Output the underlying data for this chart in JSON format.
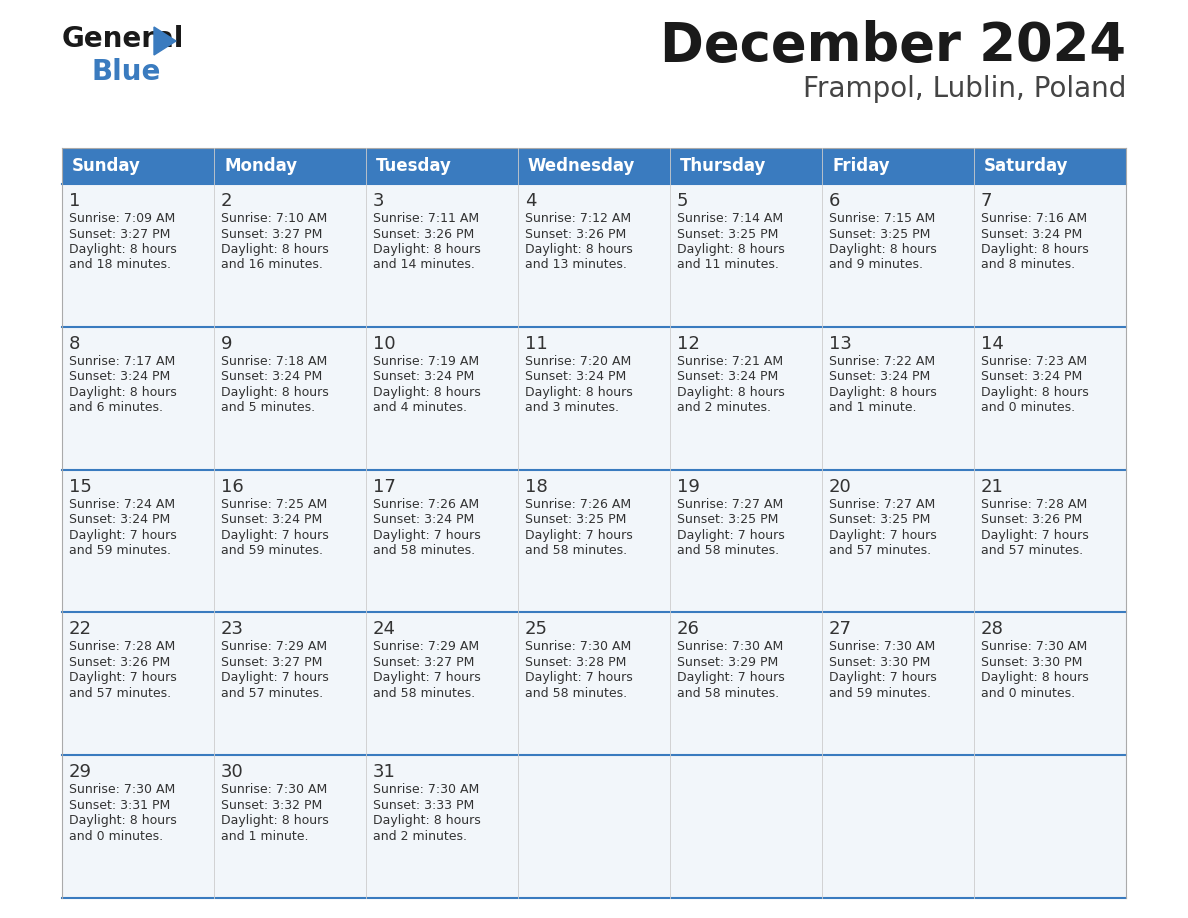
{
  "title": "December 2024",
  "subtitle": "Frampol, Lublin, Poland",
  "header_color": "#3a7bbf",
  "header_text_color": "#ffffff",
  "cell_bg": "#f2f6fa",
  "day_headers": [
    "Sunday",
    "Monday",
    "Tuesday",
    "Wednesday",
    "Thursday",
    "Friday",
    "Saturday"
  ],
  "title_color": "#1a1a1a",
  "subtitle_color": "#444444",
  "text_color": "#333333",
  "days": [
    {
      "day": 1,
      "col": 0,
      "row": 0,
      "sunrise": "7:09 AM",
      "sunset": "3:27 PM",
      "daylight_hours": 8,
      "daylight_minutes": 18
    },
    {
      "day": 2,
      "col": 1,
      "row": 0,
      "sunrise": "7:10 AM",
      "sunset": "3:27 PM",
      "daylight_hours": 8,
      "daylight_minutes": 16
    },
    {
      "day": 3,
      "col": 2,
      "row": 0,
      "sunrise": "7:11 AM",
      "sunset": "3:26 PM",
      "daylight_hours": 8,
      "daylight_minutes": 14
    },
    {
      "day": 4,
      "col": 3,
      "row": 0,
      "sunrise": "7:12 AM",
      "sunset": "3:26 PM",
      "daylight_hours": 8,
      "daylight_minutes": 13
    },
    {
      "day": 5,
      "col": 4,
      "row": 0,
      "sunrise": "7:14 AM",
      "sunset": "3:25 PM",
      "daylight_hours": 8,
      "daylight_minutes": 11
    },
    {
      "day": 6,
      "col": 5,
      "row": 0,
      "sunrise": "7:15 AM",
      "sunset": "3:25 PM",
      "daylight_hours": 8,
      "daylight_minutes": 9
    },
    {
      "day": 7,
      "col": 6,
      "row": 0,
      "sunrise": "7:16 AM",
      "sunset": "3:24 PM",
      "daylight_hours": 8,
      "daylight_minutes": 8
    },
    {
      "day": 8,
      "col": 0,
      "row": 1,
      "sunrise": "7:17 AM",
      "sunset": "3:24 PM",
      "daylight_hours": 8,
      "daylight_minutes": 6
    },
    {
      "day": 9,
      "col": 1,
      "row": 1,
      "sunrise": "7:18 AM",
      "sunset": "3:24 PM",
      "daylight_hours": 8,
      "daylight_minutes": 5
    },
    {
      "day": 10,
      "col": 2,
      "row": 1,
      "sunrise": "7:19 AM",
      "sunset": "3:24 PM",
      "daylight_hours": 8,
      "daylight_minutes": 4
    },
    {
      "day": 11,
      "col": 3,
      "row": 1,
      "sunrise": "7:20 AM",
      "sunset": "3:24 PM",
      "daylight_hours": 8,
      "daylight_minutes": 3
    },
    {
      "day": 12,
      "col": 4,
      "row": 1,
      "sunrise": "7:21 AM",
      "sunset": "3:24 PM",
      "daylight_hours": 8,
      "daylight_minutes": 2
    },
    {
      "day": 13,
      "col": 5,
      "row": 1,
      "sunrise": "7:22 AM",
      "sunset": "3:24 PM",
      "daylight_hours": 8,
      "daylight_minutes": 1
    },
    {
      "day": 14,
      "col": 6,
      "row": 1,
      "sunrise": "7:23 AM",
      "sunset": "3:24 PM",
      "daylight_hours": 8,
      "daylight_minutes": 0
    },
    {
      "day": 15,
      "col": 0,
      "row": 2,
      "sunrise": "7:24 AM",
      "sunset": "3:24 PM",
      "daylight_hours": 7,
      "daylight_minutes": 59
    },
    {
      "day": 16,
      "col": 1,
      "row": 2,
      "sunrise": "7:25 AM",
      "sunset": "3:24 PM",
      "daylight_hours": 7,
      "daylight_minutes": 59
    },
    {
      "day": 17,
      "col": 2,
      "row": 2,
      "sunrise": "7:26 AM",
      "sunset": "3:24 PM",
      "daylight_hours": 7,
      "daylight_minutes": 58
    },
    {
      "day": 18,
      "col": 3,
      "row": 2,
      "sunrise": "7:26 AM",
      "sunset": "3:25 PM",
      "daylight_hours": 7,
      "daylight_minutes": 58
    },
    {
      "day": 19,
      "col": 4,
      "row": 2,
      "sunrise": "7:27 AM",
      "sunset": "3:25 PM",
      "daylight_hours": 7,
      "daylight_minutes": 58
    },
    {
      "day": 20,
      "col": 5,
      "row": 2,
      "sunrise": "7:27 AM",
      "sunset": "3:25 PM",
      "daylight_hours": 7,
      "daylight_minutes": 57
    },
    {
      "day": 21,
      "col": 6,
      "row": 2,
      "sunrise": "7:28 AM",
      "sunset": "3:26 PM",
      "daylight_hours": 7,
      "daylight_minutes": 57
    },
    {
      "day": 22,
      "col": 0,
      "row": 3,
      "sunrise": "7:28 AM",
      "sunset": "3:26 PM",
      "daylight_hours": 7,
      "daylight_minutes": 57
    },
    {
      "day": 23,
      "col": 1,
      "row": 3,
      "sunrise": "7:29 AM",
      "sunset": "3:27 PM",
      "daylight_hours": 7,
      "daylight_minutes": 57
    },
    {
      "day": 24,
      "col": 2,
      "row": 3,
      "sunrise": "7:29 AM",
      "sunset": "3:27 PM",
      "daylight_hours": 7,
      "daylight_minutes": 58
    },
    {
      "day": 25,
      "col": 3,
      "row": 3,
      "sunrise": "7:30 AM",
      "sunset": "3:28 PM",
      "daylight_hours": 7,
      "daylight_minutes": 58
    },
    {
      "day": 26,
      "col": 4,
      "row": 3,
      "sunrise": "7:30 AM",
      "sunset": "3:29 PM",
      "daylight_hours": 7,
      "daylight_minutes": 58
    },
    {
      "day": 27,
      "col": 5,
      "row": 3,
      "sunrise": "7:30 AM",
      "sunset": "3:30 PM",
      "daylight_hours": 7,
      "daylight_minutes": 59
    },
    {
      "day": 28,
      "col": 6,
      "row": 3,
      "sunrise": "7:30 AM",
      "sunset": "3:30 PM",
      "daylight_hours": 8,
      "daylight_minutes": 0
    },
    {
      "day": 29,
      "col": 0,
      "row": 4,
      "sunrise": "7:30 AM",
      "sunset": "3:31 PM",
      "daylight_hours": 8,
      "daylight_minutes": 0
    },
    {
      "day": 30,
      "col": 1,
      "row": 4,
      "sunrise": "7:30 AM",
      "sunset": "3:32 PM",
      "daylight_hours": 8,
      "daylight_minutes": 1
    },
    {
      "day": 31,
      "col": 2,
      "row": 4,
      "sunrise": "7:30 AM",
      "sunset": "3:33 PM",
      "daylight_hours": 8,
      "daylight_minutes": 2
    }
  ]
}
